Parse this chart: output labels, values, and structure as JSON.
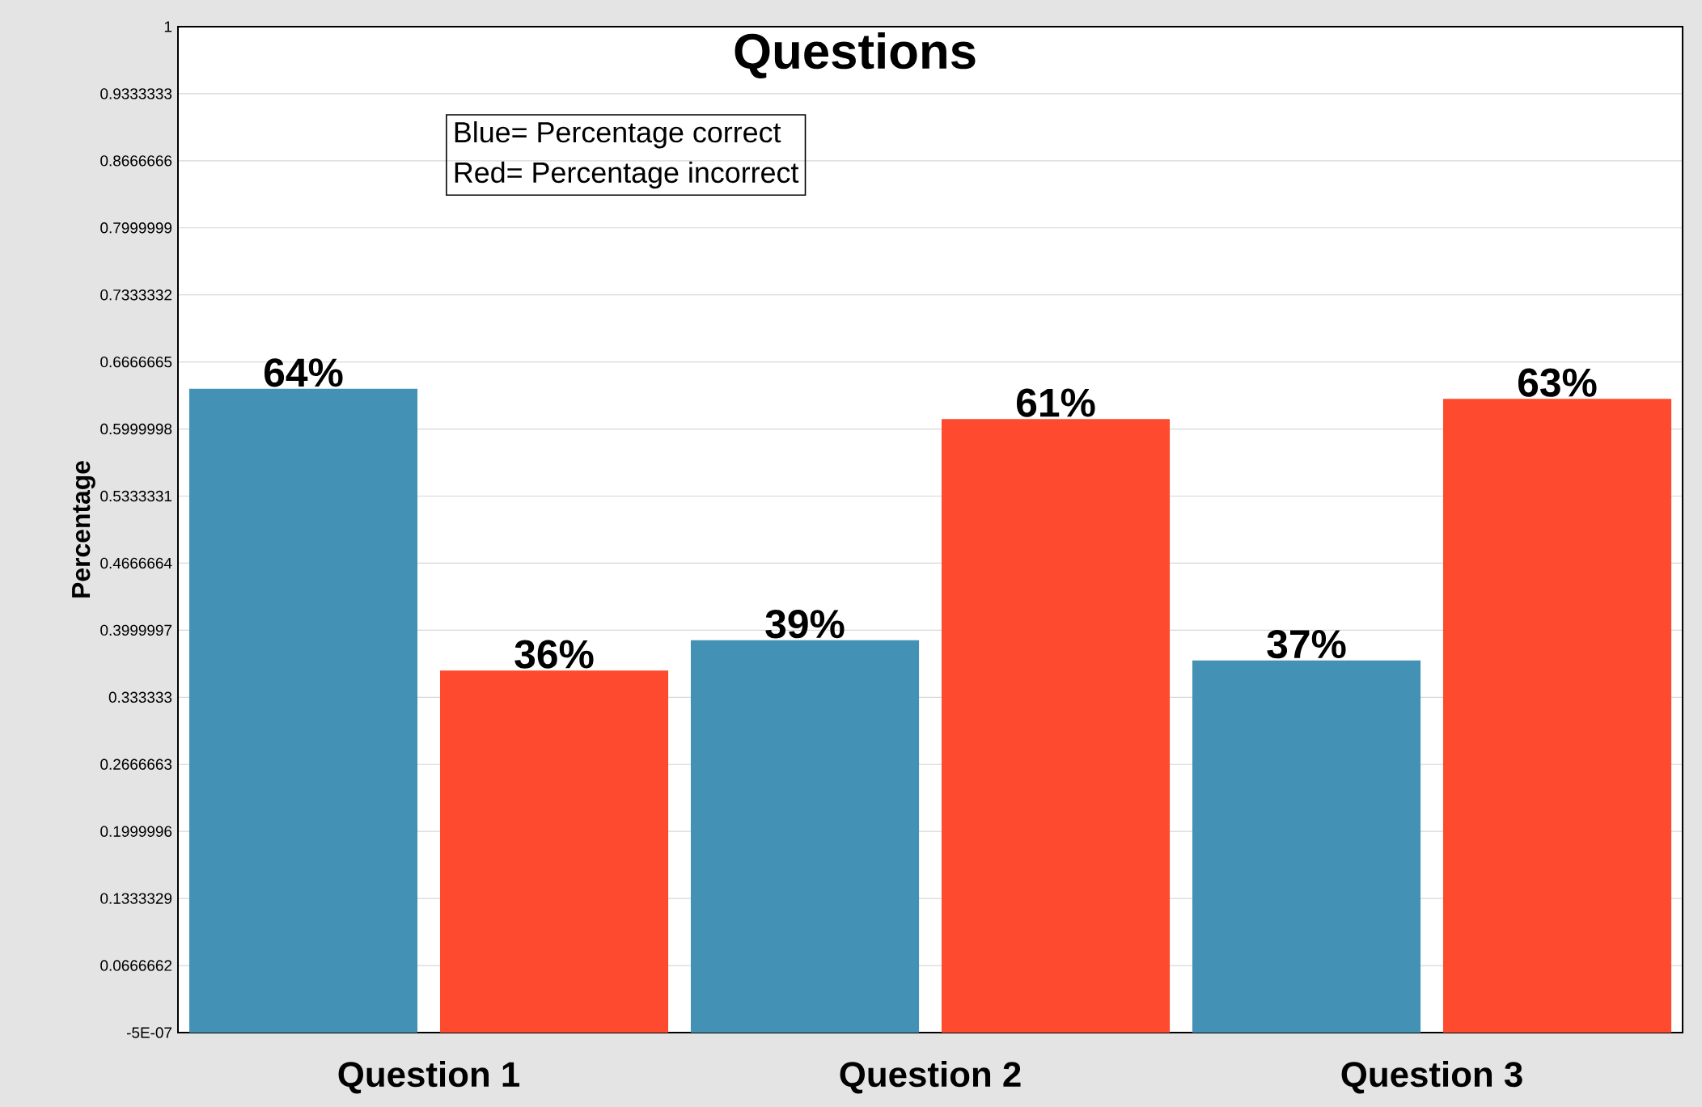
{
  "chart_data": {
    "type": "bar",
    "title": "Questions",
    "ylabel": "Percentage",
    "categories": [
      "Question 1",
      "Question 2",
      "Question 3"
    ],
    "series": [
      {
        "color": "#4391b4",
        "values": [
          0.64,
          0.39,
          0.37
        ],
        "value_labels": [
          "64%",
          "39%",
          "37%"
        ]
      },
      {
        "color": "#fe4a2e",
        "values": [
          0.36,
          0.61,
          0.63
        ],
        "value_labels": [
          "36%",
          "61%",
          "63%"
        ]
      }
    ],
    "ylim": [
      -5e-07,
      1
    ],
    "yticks": [
      {
        "value": -5e-07,
        "label": "-5E-07"
      },
      0.0666662,
      0.1333329,
      0.1999996,
      0.2666663,
      0.333333,
      0.3999997,
      0.4666664,
      0.5333331,
      0.5999998,
      0.6666665,
      0.7333332,
      0.7999999,
      0.8666666,
      0.9333333,
      1
    ],
    "grid": "y",
    "annotations": [
      "Blue= Percentage correct",
      "Red= Percentage incorrect"
    ]
  }
}
